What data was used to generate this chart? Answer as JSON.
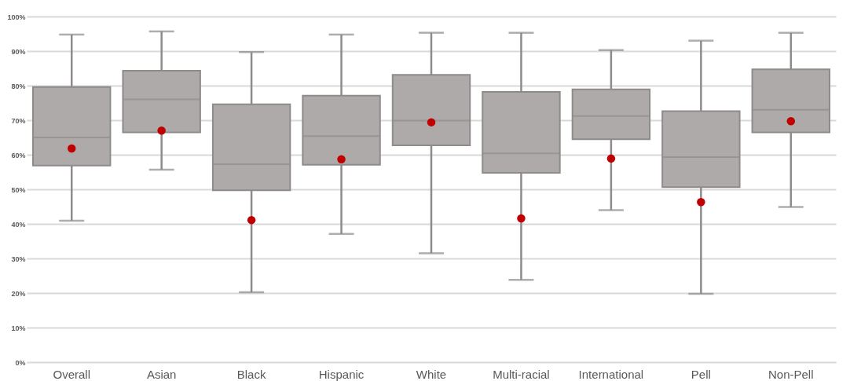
{
  "chart_data": {
    "type": "box",
    "categories": [
      "Overall",
      "Asian",
      "Black",
      "Hispanic",
      "White",
      "Multi-racial",
      "International",
      "Pell",
      "Non-Pell"
    ],
    "ylim": [
      0,
      100
    ],
    "yticks": [
      {
        "value": 0,
        "label": "0%"
      },
      {
        "value": 10,
        "label": "10%"
      },
      {
        "value": 20,
        "label": "20%"
      },
      {
        "value": 30,
        "label": "30%"
      },
      {
        "value": 40,
        "label": "40%"
      },
      {
        "value": 50,
        "label": "50%"
      },
      {
        "value": 60,
        "label": "60%"
      },
      {
        "value": 70,
        "label": "70%"
      },
      {
        "value": 80,
        "label": "80%"
      },
      {
        "value": 90,
        "label": "90%"
      },
      {
        "value": 100,
        "label": "100%"
      }
    ],
    "grid": "y",
    "series": [
      {
        "type": "box",
        "color": "#aeaaa9",
        "boxes": [
          {
            "low": 40.9,
            "q1": 56.9,
            "median": 65,
            "q3": 79.6,
            "high": 94.8
          },
          {
            "low": 55.7,
            "q1": 66.5,
            "median": 76,
            "q3": 84.3,
            "high": 95.7
          },
          {
            "low": 20.2,
            "q1": 49.7,
            "median": 57.3,
            "q3": 74.6,
            "high": 89.7
          },
          {
            "low": 37.1,
            "q1": 57.1,
            "median": 65.4,
            "q3": 77.1,
            "high": 94.8
          },
          {
            "low": 31.5,
            "q1": 62.7,
            "median": 69.9,
            "q3": 83.1,
            "high": 95.3
          },
          {
            "low": 23.8,
            "q1": 54.8,
            "median": 60.4,
            "q3": 78.2,
            "high": 95.3
          },
          {
            "low": 44,
            "q1": 64.5,
            "median": 71.2,
            "q3": 78.9,
            "high": 90.3
          },
          {
            "low": 19.8,
            "q1": 50.6,
            "median": 59.3,
            "q3": 72.6,
            "high": 93
          },
          {
            "low": 44.9,
            "q1": 66.5,
            "median": 73,
            "q3": 84.7,
            "high": 95.3
          }
        ]
      },
      {
        "type": "scatter",
        "color": "#c00000",
        "marker": "circle",
        "x": [
          "Overall",
          "Asian",
          "Black",
          "Hispanic",
          "White",
          "Multi-racial",
          "International",
          "Pell",
          "Non-Pell"
        ],
        "values": [
          61.8,
          67,
          41.1,
          58.7,
          69.4,
          41.6,
          58.9,
          46.3,
          69.7
        ]
      }
    ]
  }
}
